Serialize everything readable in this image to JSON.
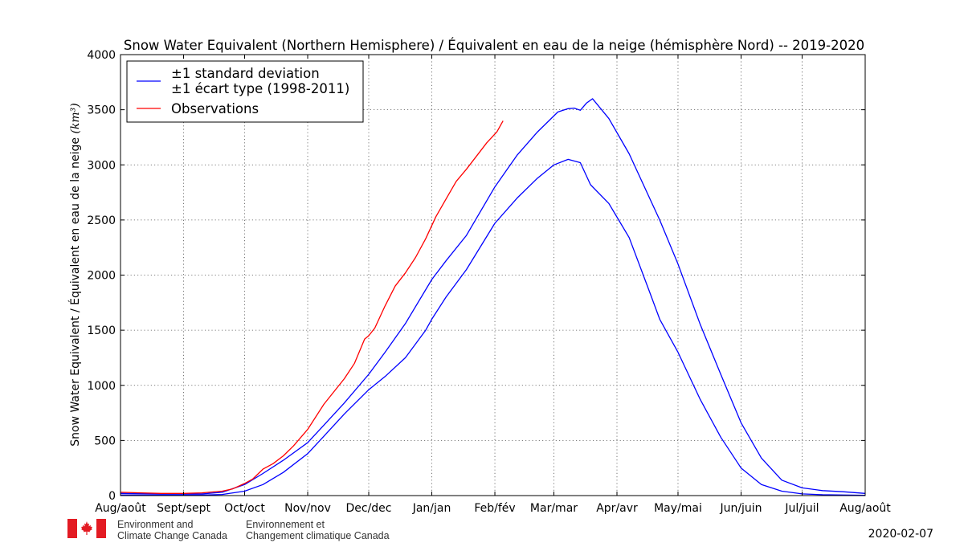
{
  "chart_data": {
    "type": "line",
    "title": "Snow Water Equivalent (Northern Hemisphere) / Équivalent en eau de la neige (hémisphère Nord) -- 2019-2020",
    "ylabel": "Snow Water Equivalent / Équivalent en eau de la neige",
    "ylabel_unit": "km³",
    "ylim": [
      0,
      4000
    ],
    "xlim": [
      0,
      366
    ],
    "yticks": [
      0,
      500,
      1000,
      1500,
      2000,
      2500,
      3000,
      3500,
      4000
    ],
    "xticks": [
      {
        "label": "Aug/août",
        "day": 0
      },
      {
        "label": "Sept/sept",
        "day": 31
      },
      {
        "label": "Oct/oct",
        "day": 61
      },
      {
        "label": "Nov/nov",
        "day": 92
      },
      {
        "label": "Dec/dec",
        "day": 122
      },
      {
        "label": "Jan/jan",
        "day": 153
      },
      {
        "label": "Feb/fév",
        "day": 184
      },
      {
        "label": "Mar/mar",
        "day": 213
      },
      {
        "label": "Apr/avr",
        "day": 244
      },
      {
        "label": "May/mai",
        "day": 274
      },
      {
        "label": "Jun/juin",
        "day": 305
      },
      {
        "label": "Jul/juil",
        "day": 335
      },
      {
        "label": "Aug/août",
        "day": 366
      }
    ],
    "grid": true,
    "grid_style": "dotted",
    "legend_position": "top-left",
    "legend": [
      {
        "line1": "±1 standard deviation",
        "line2": "±1 écart type (1998-2011)",
        "color": "#0000ff"
      },
      {
        "line1": "Observations",
        "line2": "",
        "color": "#ff0000"
      }
    ],
    "series": [
      {
        "name": "+1 standard deviation",
        "color": "#0000ff",
        "x": [
          0,
          20,
          40,
          50,
          61,
          70,
          80,
          92,
          100,
          110,
          122,
          130,
          140,
          153,
          160,
          170,
          184,
          195,
          205,
          215,
          220,
          223,
          226,
          229,
          232,
          240,
          250,
          260,
          265,
          274,
          285,
          295,
          305,
          315,
          325,
          335,
          345,
          355,
          366
        ],
        "y": [
          20,
          15,
          15,
          30,
          100,
          200,
          320,
          480,
          640,
          840,
          1100,
          1300,
          1560,
          1960,
          2130,
          2360,
          2800,
          3090,
          3300,
          3480,
          3510,
          3515,
          3495,
          3560,
          3600,
          3420,
          3100,
          2700,
          2500,
          2100,
          1550,
          1100,
          660,
          340,
          140,
          70,
          45,
          35,
          20
        ]
      },
      {
        "name": "-1 standard deviation",
        "color": "#0000ff",
        "x": [
          0,
          20,
          40,
          50,
          61,
          70,
          80,
          92,
          100,
          110,
          122,
          130,
          140,
          150,
          153,
          160,
          170,
          184,
          195,
          205,
          213,
          220,
          226,
          231,
          240,
          250,
          260,
          265,
          274,
          285,
          295,
          305,
          315,
          325,
          335,
          345,
          355,
          366
        ],
        "y": [
          5,
          5,
          5,
          10,
          40,
          100,
          210,
          380,
          540,
          740,
          960,
          1080,
          1250,
          1500,
          1600,
          1800,
          2050,
          2470,
          2700,
          2880,
          3000,
          3050,
          3020,
          2820,
          2650,
          2340,
          1850,
          1600,
          1300,
          870,
          530,
          250,
          100,
          40,
          15,
          8,
          5,
          3
        ]
      },
      {
        "name": "Observations",
        "color": "#ff0000",
        "x": [
          0,
          10,
          20,
          31,
          40,
          50,
          55,
          61,
          65,
          70,
          75,
          80,
          85,
          92,
          100,
          110,
          115,
          120,
          122,
          125,
          130,
          135,
          140,
          145,
          150,
          155,
          160,
          165,
          170,
          175,
          180,
          185,
          188
        ],
        "y": [
          30,
          25,
          20,
          20,
          25,
          40,
          60,
          110,
          150,
          240,
          290,
          360,
          450,
          600,
          830,
          1060,
          1200,
          1420,
          1450,
          1520,
          1720,
          1900,
          2020,
          2160,
          2330,
          2530,
          2690,
          2850,
          2960,
          3080,
          3200,
          3300,
          3400
        ]
      }
    ]
  },
  "footer": {
    "dept_en_line1": "Environment and",
    "dept_en_line2": "Climate Change Canada",
    "dept_fr_line1": "Environnement et",
    "dept_fr_line2": "Changement climatique Canada",
    "date": "2020-02-07",
    "flag_color": "#e31b23"
  }
}
